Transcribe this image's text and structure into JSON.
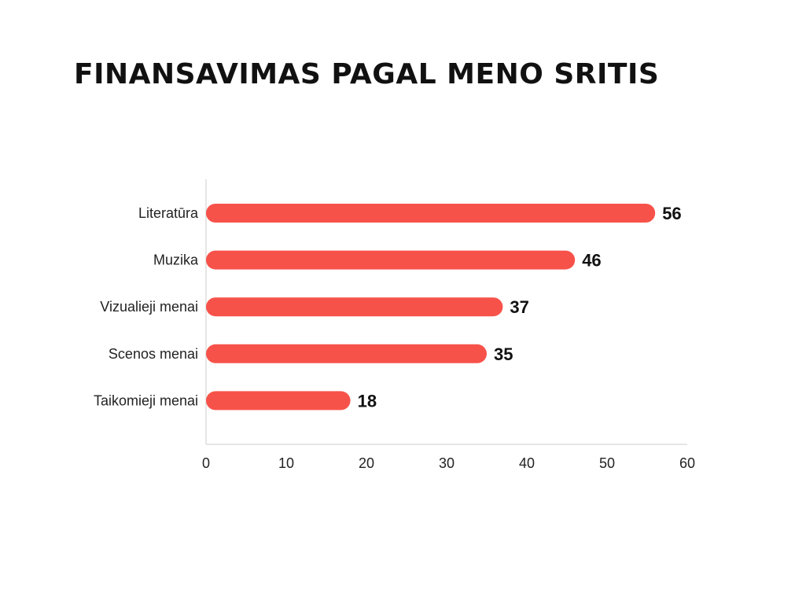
{
  "page": {
    "title": "FINANSAVIMAS PAGAL MENO SRITIS"
  },
  "colors": {
    "bar": "#f7524a",
    "axis": "#cccccc",
    "text": "#222222"
  },
  "chart_data": {
    "type": "bar",
    "orientation": "horizontal",
    "title": "FINANSAVIMAS PAGAL MENO SRITIS",
    "categories": [
      "Literatūra",
      "Muzika",
      "Vizualieji menai",
      "Scenos menai",
      "Taikomieji menai"
    ],
    "values": [
      56,
      46,
      37,
      35,
      18
    ],
    "data_labels": [
      "56",
      "46",
      "37",
      "35",
      "18"
    ],
    "x_ticks": [
      "0",
      "10",
      "20",
      "30",
      "40",
      "50",
      "60"
    ],
    "xlim": [
      0,
      60
    ],
    "xlabel": "",
    "ylabel": "",
    "grid": false,
    "legend": "none"
  }
}
